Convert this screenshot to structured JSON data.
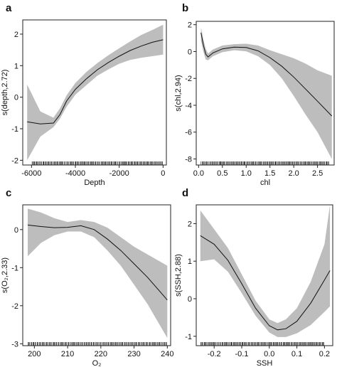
{
  "chart_data": [
    {
      "panel": "a",
      "type": "line",
      "xlabel": "Depth",
      "ylabel": "s(depth,2.72)",
      "xlim": [
        -6400,
        150
      ],
      "ylim": [
        -2.15,
        2.45
      ],
      "xticks": [
        -6000,
        -4000,
        -2000,
        0
      ],
      "xtick_labels": [
        "-6000",
        "-4000",
        "-2000",
        "0"
      ],
      "yticks": [
        -2,
        -1,
        0,
        1,
        2
      ],
      "ytick_labels": [
        "-2",
        "-1",
        "0",
        "1",
        "2"
      ],
      "x": [
        -6200,
        -5600,
        -5000,
        -4700,
        -4400,
        -4000,
        -3500,
        -3000,
        -2500,
        -2000,
        -1500,
        -1000,
        -500,
        0
      ],
      "fit": [
        -0.78,
        -0.85,
        -0.82,
        -0.55,
        -0.12,
        0.25,
        0.58,
        0.87,
        1.1,
        1.3,
        1.48,
        1.62,
        1.74,
        1.82
      ],
      "lower": [
        -2.0,
        -1.25,
        -0.95,
        -0.68,
        -0.3,
        0.08,
        0.38,
        0.68,
        0.88,
        1.06,
        1.18,
        1.25,
        1.3,
        1.35
      ],
      "upper": [
        0.4,
        -0.45,
        -0.65,
        -0.35,
        0.06,
        0.45,
        0.8,
        1.08,
        1.33,
        1.55,
        1.77,
        1.97,
        2.13,
        2.3
      ],
      "rug_range": [
        -6000,
        0
      ]
    },
    {
      "panel": "b",
      "type": "line",
      "xlabel": "chl",
      "ylabel": "s(chl,2.94)",
      "xlim": [
        -0.05,
        2.85
      ],
      "ylim": [
        -8.45,
        2.25
      ],
      "xticks": [
        0.0,
        0.5,
        1.0,
        1.5,
        2.0,
        2.5
      ],
      "xtick_labels": [
        "0.0",
        "0.5",
        "1.0",
        "1.5",
        "2.0",
        "2.5"
      ],
      "yticks": [
        -8,
        -6,
        -4,
        -2,
        0,
        2
      ],
      "ytick_labels": [
        "-8",
        "-6",
        "-4",
        "-2",
        "0",
        "2"
      ],
      "x": [
        0.05,
        0.1,
        0.15,
        0.2,
        0.3,
        0.5,
        0.75,
        1.0,
        1.25,
        1.5,
        1.75,
        2.0,
        2.25,
        2.5,
        2.8
      ],
      "fit": [
        1.4,
        0.5,
        -0.2,
        -0.4,
        -0.1,
        0.2,
        0.33,
        0.3,
        0.05,
        -0.45,
        -1.1,
        -1.9,
        -2.8,
        -3.7,
        -4.8
      ],
      "lower": [
        0.8,
        0.0,
        -0.6,
        -0.65,
        -0.35,
        -0.05,
        0.1,
        0.02,
        -0.35,
        -1.0,
        -2.0,
        -3.3,
        -4.7,
        -6.0,
        -8.0
      ],
      "upper": [
        1.8,
        0.9,
        0.2,
        -0.15,
        0.15,
        0.45,
        0.55,
        0.58,
        0.45,
        0.1,
        -0.2,
        -0.5,
        -0.9,
        -1.4,
        -1.8
      ],
      "rug_range": [
        0.05,
        2.75
      ]
    },
    {
      "panel": "c",
      "type": "line",
      "xlabel": "O₂",
      "ylabel": "s(O₂,2.33)",
      "xlim": [
        196.5,
        241
      ],
      "ylim": [
        -3.05,
        0.65
      ],
      "xticks": [
        200,
        210,
        220,
        230,
        240
      ],
      "xtick_labels": [
        "200",
        "210",
        "220",
        "230",
        "240"
      ],
      "yticks": [
        -3,
        -2,
        -1,
        0
      ],
      "ytick_labels": [
        "-3",
        "-2",
        "-1",
        "0"
      ],
      "x": [
        198,
        202,
        206,
        210,
        214,
        218,
        222,
        226,
        230,
        234,
        238,
        240
      ],
      "fit": [
        0.12,
        0.08,
        0.05,
        0.06,
        0.1,
        0.0,
        -0.25,
        -0.55,
        -0.9,
        -1.25,
        -1.65,
        -1.85
      ],
      "lower": [
        -0.7,
        -0.35,
        -0.15,
        -0.05,
        -0.05,
        -0.2,
        -0.55,
        -0.95,
        -1.45,
        -1.95,
        -2.55,
        -2.85
      ],
      "upper": [
        0.55,
        0.45,
        0.3,
        0.2,
        0.25,
        0.2,
        0.05,
        -0.2,
        -0.45,
        -0.65,
        -0.85,
        -0.95
      ],
      "rug_range": [
        198,
        240
      ]
    },
    {
      "panel": "d",
      "type": "line",
      "xlabel": "SSH",
      "ylabel": "s(SSH,2.88)",
      "xlim": [
        -0.265,
        0.23
      ],
      "ylim": [
        -1.25,
        2.5
      ],
      "xticks": [
        -0.2,
        -0.1,
        0.0,
        0.1,
        0.2
      ],
      "xtick_labels": [
        "-0.2",
        "-0.1",
        "0.0",
        "0.1",
        "0.2"
      ],
      "yticks": [
        -1,
        0,
        1,
        2
      ],
      "ytick_labels": [
        "-1",
        "0",
        "1",
        "2"
      ],
      "x": [
        -0.25,
        -0.2,
        -0.15,
        -0.1,
        -0.05,
        0.0,
        0.03,
        0.06,
        0.1,
        0.15,
        0.2,
        0.22
      ],
      "fit": [
        1.68,
        1.45,
        1.02,
        0.4,
        -0.25,
        -0.72,
        -0.83,
        -0.8,
        -0.6,
        -0.12,
        0.5,
        0.75
      ],
      "lower": [
        1.0,
        1.05,
        0.72,
        0.15,
        -0.45,
        -0.9,
        -1.02,
        -1.02,
        -0.92,
        -0.7,
        -0.35,
        -0.2
      ],
      "upper": [
        2.35,
        1.85,
        1.35,
        0.65,
        -0.05,
        -0.55,
        -0.65,
        -0.55,
        -0.25,
        0.45,
        1.45,
        2.5
      ],
      "rug_range": [
        -0.25,
        0.2
      ]
    }
  ]
}
